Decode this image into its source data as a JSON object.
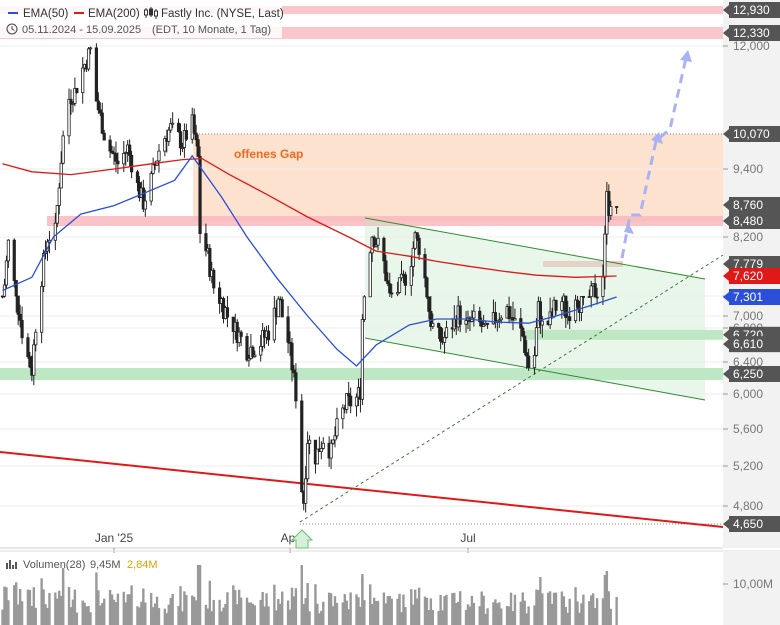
{
  "header": {
    "ema50_label": "EMA(50)",
    "ema200_label": "EMA(200)",
    "instrument": "Fastly Inc. (NYSE, Last)",
    "period_text": "05.11.2024 - 15.09.2025",
    "info_text": "(EDT, 10 Monate, 1 Tag)"
  },
  "volume_panel": {
    "title": "Volumen(28)",
    "value1": "9,45M",
    "value2": "2,84M",
    "axis_label": "10,00M"
  },
  "colors": {
    "candle": "#222222",
    "ema50": "#2b4fd6",
    "ema200": "#e01818",
    "resistance_zone": "#f8b9bd",
    "support_zone": "#bde8c3",
    "gap_zone": "#fde3cf",
    "channel_line": "#2e8b2e",
    "trendline": "#e01818",
    "projection": "#a9b2f2",
    "label_bg": "#555555",
    "label_current": "#e01818",
    "label_ema50": "#2b4fd6",
    "gap_text": "#ee6a1e",
    "volume_bar": "#999999"
  },
  "chart_data": {
    "type": "candlestick",
    "title": "Fastly Inc. (NYSE, Last)",
    "ylim": [
      4.5,
      12.6
    ],
    "y_ticks": [
      4.8,
      5.2,
      5.6,
      6.0,
      6.4,
      6.8,
      7.0,
      7.2,
      8.2,
      9.4,
      12.0
    ],
    "y_tick_labels": [
      "4,800",
      "5,200",
      "5,600",
      "6,000",
      "6,400",
      "6,800",
      "7,000",
      "7,200",
      "8,200",
      "9,400",
      "12,000"
    ],
    "x_labels": [
      {
        "date": "2025-01-01",
        "label": "Jan '25"
      },
      {
        "date": "2025-04-01",
        "label": "Apr"
      },
      {
        "date": "2025-07-01",
        "label": "Jul"
      }
    ],
    "x_range": [
      "2024-11-05",
      "2025-10-07"
    ],
    "series": [
      {
        "name": "EMA(50)",
        "points": [
          [
            "2024-11-05",
            7.4
          ],
          [
            "2024-11-20",
            7.6
          ],
          [
            "2024-12-01",
            8.2
          ],
          [
            "2024-12-15",
            8.6
          ],
          [
            "2025-01-01",
            8.75
          ],
          [
            "2025-01-15",
            8.95
          ],
          [
            "2025-02-01",
            9.2
          ],
          [
            "2025-02-10",
            9.65
          ],
          [
            "2025-02-25",
            8.9
          ],
          [
            "2025-03-10",
            8.2
          ],
          [
            "2025-03-25",
            7.6
          ],
          [
            "2025-04-10",
            7.0
          ],
          [
            "2025-04-25",
            6.55
          ],
          [
            "2025-05-05",
            6.35
          ],
          [
            "2025-05-15",
            6.6
          ],
          [
            "2025-06-01",
            6.85
          ],
          [
            "2025-06-15",
            6.95
          ],
          [
            "2025-07-01",
            6.95
          ],
          [
            "2025-07-15",
            6.9
          ],
          [
            "2025-08-01",
            6.88
          ],
          [
            "2025-08-15",
            7.0
          ],
          [
            "2025-09-01",
            7.1
          ],
          [
            "2025-09-15",
            7.301
          ]
        ]
      },
      {
        "name": "EMA(200)",
        "points": [
          [
            "2024-11-05",
            9.5
          ],
          [
            "2024-11-20",
            9.35
          ],
          [
            "2024-12-10",
            9.3
          ],
          [
            "2025-01-01",
            9.4
          ],
          [
            "2025-01-20",
            9.5
          ],
          [
            "2025-02-05",
            9.58
          ],
          [
            "2025-02-15",
            9.6
          ],
          [
            "2025-03-01",
            9.3
          ],
          [
            "2025-03-20",
            8.95
          ],
          [
            "2025-04-10",
            8.55
          ],
          [
            "2025-05-01",
            8.2
          ],
          [
            "2025-05-15",
            7.98
          ],
          [
            "2025-06-01",
            7.9
          ],
          [
            "2025-06-15",
            7.82
          ],
          [
            "2025-07-01",
            7.75
          ],
          [
            "2025-07-20",
            7.68
          ],
          [
            "2025-08-05",
            7.63
          ],
          [
            "2025-08-25",
            7.6
          ],
          [
            "2025-09-15",
            7.62
          ]
        ]
      }
    ],
    "candles_segments": [
      [
        "2024-11-05",
        7.2
      ],
      [
        "2024-11-08",
        8.1
      ],
      [
        "2024-11-12",
        7.3
      ],
      [
        "2024-11-16",
        6.6
      ],
      [
        "2024-11-20",
        6.3
      ],
      [
        "2024-11-24",
        7.4
      ],
      [
        "2024-11-28",
        8.2
      ],
      [
        "2024-12-02",
        8.3
      ],
      [
        "2024-12-05",
        9.6
      ],
      [
        "2024-12-08",
        10.8
      ],
      [
        "2024-12-12",
        11.0
      ],
      [
        "2024-12-16",
        11.5
      ],
      [
        "2024-12-20",
        11.9
      ],
      [
        "2024-12-23",
        10.8
      ],
      [
        "2024-12-28",
        9.9
      ],
      [
        "2025-01-03",
        9.5
      ],
      [
        "2025-01-08",
        9.8
      ],
      [
        "2025-01-13",
        9.1
      ],
      [
        "2025-01-16",
        8.8
      ],
      [
        "2025-01-20",
        9.2
      ],
      [
        "2025-01-25",
        9.9
      ],
      [
        "2025-01-30",
        10.2
      ],
      [
        "2025-02-05",
        9.9
      ],
      [
        "2025-02-10",
        10.3
      ],
      [
        "2025-02-13",
        9.6
      ],
      [
        "2025-02-14",
        8.3
      ],
      [
        "2025-02-18",
        7.9
      ],
      [
        "2025-02-22",
        7.3
      ],
      [
        "2025-02-27",
        7.05
      ],
      [
        "2025-03-04",
        6.8
      ],
      [
        "2025-03-10",
        6.55
      ],
      [
        "2025-03-16",
        6.6
      ],
      [
        "2025-03-22",
        6.8
      ],
      [
        "2025-03-26",
        7.2
      ],
      [
        "2025-03-30",
        6.8
      ],
      [
        "2025-04-02",
        6.35
      ],
      [
        "2025-04-04",
        6.0
      ],
      [
        "2025-04-06",
        5.1
      ],
      [
        "2025-04-08",
        4.85
      ],
      [
        "2025-04-10",
        5.5
      ],
      [
        "2025-04-14",
        5.3
      ],
      [
        "2025-04-18",
        5.5
      ],
      [
        "2025-04-22",
        5.35
      ],
      [
        "2025-04-26",
        5.7
      ],
      [
        "2025-04-30",
        5.9
      ],
      [
        "2025-05-04",
        5.9
      ],
      [
        "2025-05-07",
        6.05
      ],
      [
        "2025-05-08",
        6.95
      ],
      [
        "2025-05-10",
        7.7
      ],
      [
        "2025-05-13",
        8.25
      ],
      [
        "2025-05-18",
        7.95
      ],
      [
        "2025-05-22",
        7.3
      ],
      [
        "2025-05-26",
        7.4
      ],
      [
        "2025-06-01",
        7.7
      ],
      [
        "2025-06-04",
        8.2
      ],
      [
        "2025-06-08",
        7.9
      ],
      [
        "2025-06-10",
        7.25
      ],
      [
        "2025-06-12",
        6.9
      ],
      [
        "2025-06-15",
        6.7
      ],
      [
        "2025-06-18",
        6.65
      ],
      [
        "2025-06-22",
        6.8
      ],
      [
        "2025-06-26",
        7.0
      ],
      [
        "2025-06-30",
        6.85
      ],
      [
        "2025-07-05",
        6.95
      ],
      [
        "2025-07-10",
        6.75
      ],
      [
        "2025-07-15",
        6.95
      ],
      [
        "2025-07-20",
        7.1
      ],
      [
        "2025-07-25",
        6.9
      ],
      [
        "2025-07-29",
        6.7
      ],
      [
        "2025-08-01",
        6.35
      ],
      [
        "2025-08-03",
        6.2
      ],
      [
        "2025-08-06",
        7.05
      ],
      [
        "2025-08-09",
        6.75
      ],
      [
        "2025-08-13",
        7.0
      ],
      [
        "2025-08-17",
        7.2
      ],
      [
        "2025-08-21",
        7.0
      ],
      [
        "2025-08-25",
        7.25
      ],
      [
        "2025-08-29",
        7.1
      ],
      [
        "2025-09-01",
        7.25
      ],
      [
        "2025-09-03",
        7.4
      ],
      [
        "2025-09-05",
        7.35
      ],
      [
        "2025-09-08",
        7.65
      ],
      [
        "2025-09-09",
        8.15
      ],
      [
        "2025-09-10",
        9.15
      ],
      [
        "2025-09-11",
        8.7
      ],
      [
        "2025-09-12",
        8.6
      ],
      [
        "2025-09-15",
        8.76
      ]
    ],
    "price_levels": [
      {
        "value": 12.93,
        "label": "12,930",
        "kind": "resistance"
      },
      {
        "value": 12.33,
        "label": "12,330",
        "kind": "resistance"
      },
      {
        "value": 10.07,
        "label": "10,070",
        "kind": "gap"
      },
      {
        "value": 8.76,
        "label": "8,760",
        "kind": "current"
      },
      {
        "value": 8.48,
        "label": "8,480",
        "kind": "resistance"
      },
      {
        "value": 7.779,
        "label": "7,779",
        "kind": "resistance"
      },
      {
        "value": 7.62,
        "label": "7,620",
        "kind": "ema200"
      },
      {
        "value": 7.301,
        "label": "7,301",
        "kind": "ema50"
      },
      {
        "value": 6.72,
        "label": "6,720",
        "kind": "support"
      },
      {
        "value": 6.61,
        "label": "6,610",
        "kind": "support"
      },
      {
        "value": 6.25,
        "label": "6,250",
        "kind": "support"
      },
      {
        "value": 4.65,
        "label": "4,650",
        "kind": "support"
      }
    ],
    "annotations": [
      {
        "text": "offenes Gap",
        "range": [
          8.48,
          10.07
        ]
      }
    ],
    "volume": {
      "name": "Volumen(28)",
      "y_tick": "10,00M"
    }
  }
}
